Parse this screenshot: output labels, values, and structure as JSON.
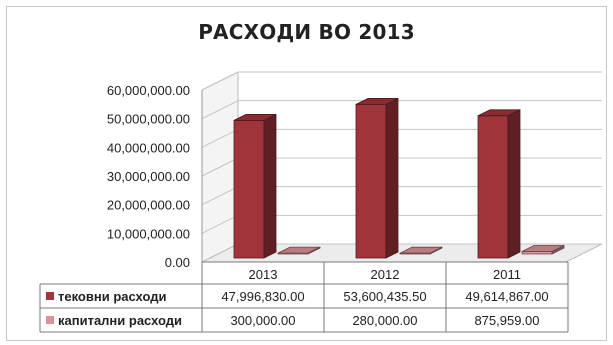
{
  "chart_data": {
    "type": "bar",
    "title": "РАСХОДИ ВО 2013",
    "categories": [
      "2013",
      "2012",
      "2011"
    ],
    "series": [
      {
        "name": "тековни расходи",
        "color": "#a0343b",
        "values": [
          47996830.0,
          53600435.5,
          49614867.0
        ],
        "labels": [
          "47,996,830.00",
          "53,600,435.50",
          "49,614,867.00"
        ]
      },
      {
        "name": "капитални расходи",
        "color": "#d99398",
        "values": [
          300000.0,
          280000.0,
          875959.0
        ],
        "labels": [
          "300,000.00",
          "280,000.00",
          "875,959.00"
        ]
      }
    ],
    "ylim": [
      0,
      60000000
    ],
    "yticks": [
      "0.00",
      "10,000,000.00",
      "20,000,000.00",
      "30,000,000.00",
      "40,000,000.00",
      "50,000,000.00",
      "60,000,000.00"
    ],
    "grid": true,
    "style": "3d-column",
    "legend": "data-table"
  }
}
